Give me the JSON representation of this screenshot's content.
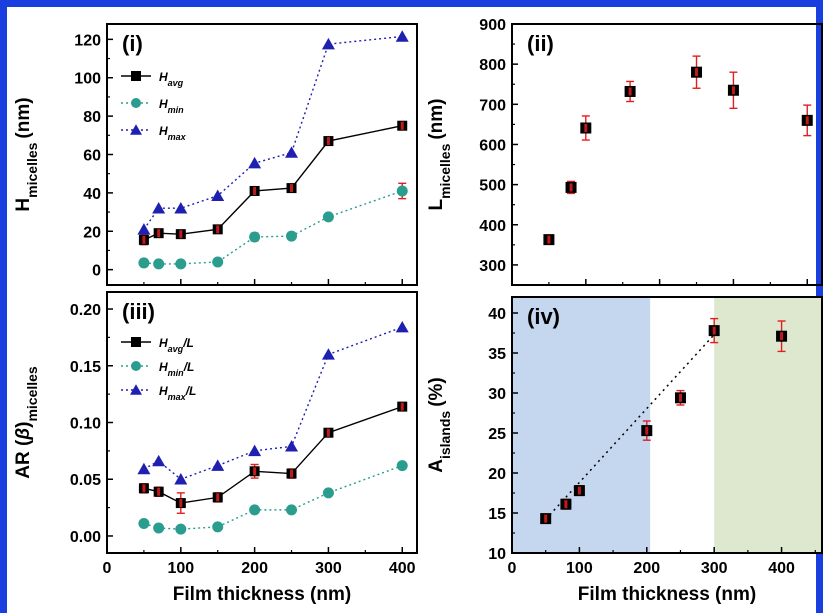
{
  "colors": {
    "frame": "#1a3fe0",
    "avg_marker": "#000000",
    "avg_error": "#e02020",
    "min_marker": "#2a9d8f",
    "max_marker": "#2020b0",
    "region_blue": "#c4d7ee",
    "region_green": "#dde8cf"
  },
  "chart_data": [
    {
      "id": "i",
      "type": "line",
      "panel_label": "(i)",
      "ylabel_main": "H",
      "ylabel_sub": "micelles",
      "ylabel_unit": "(nm)",
      "xlabel": "",
      "xlim": [
        0,
        420
      ],
      "ylim": [
        -8,
        128
      ],
      "yticks": [
        0,
        20,
        40,
        60,
        80,
        100,
        120
      ],
      "xticks": [
        0,
        100,
        200,
        300,
        400
      ],
      "show_xtick_labels": false,
      "legend": "top-left",
      "series": [
        {
          "name": "H",
          "name_sub": "avg",
          "name_suffix": "",
          "marker": "square",
          "line": "solid",
          "x": [
            50,
            70,
            100,
            150,
            200,
            250,
            300,
            400
          ],
          "y": [
            15.5,
            19,
            18.5,
            21,
            41,
            42.5,
            67,
            75
          ],
          "yerr": [
            2.5,
            1.5,
            1.5,
            1.5,
            1.5,
            1.5,
            1.5,
            1.5
          ]
        },
        {
          "name": "H",
          "name_sub": "min",
          "name_suffix": "",
          "marker": "circle",
          "line": "dotted",
          "x": [
            50,
            70,
            100,
            150,
            200,
            250,
            300,
            400
          ],
          "y": [
            3.5,
            3,
            3,
            4,
            17,
            17.5,
            27.5,
            41
          ],
          "yerr": [
            0.5,
            0.5,
            0.5,
            0.5,
            2,
            1,
            1,
            4
          ]
        },
        {
          "name": "H",
          "name_sub": "max",
          "name_suffix": "",
          "marker": "triangle",
          "line": "dotted",
          "x": [
            50,
            70,
            100,
            150,
            200,
            250,
            300,
            400
          ],
          "y": [
            21,
            32,
            32,
            38.5,
            55.5,
            61,
            117.5,
            121.5
          ],
          "yerr": [
            0,
            0,
            0,
            0,
            0,
            0,
            0,
            0
          ]
        }
      ]
    },
    {
      "id": "ii",
      "type": "scatter",
      "panel_label": "(ii)",
      "ylabel_main": "L",
      "ylabel_sub": "micelles",
      "ylabel_unit": "(nm)",
      "xlabel": "",
      "xlim": [
        0,
        420
      ],
      "ylim": [
        250,
        900
      ],
      "yticks": [
        300,
        400,
        500,
        600,
        700,
        800,
        900
      ],
      "xticks": [
        0,
        100,
        200,
        300,
        400
      ],
      "show_xtick_labels": false,
      "legend": "none",
      "series": [
        {
          "name": "",
          "marker": "square",
          "line": "none",
          "x": [
            50,
            80,
            100,
            160,
            250,
            300,
            400
          ],
          "y": [
            363,
            493,
            641,
            732,
            780,
            735,
            660
          ],
          "yerr": [
            10,
            15,
            30,
            25,
            40,
            45,
            38
          ]
        }
      ]
    },
    {
      "id": "iii",
      "type": "line",
      "panel_label": "(iii)",
      "ylabel_main": "AR (",
      "ylabel_beta": "β",
      "ylabel_close": ")",
      "ylabel_sub": "micelles",
      "ylabel_unit": "",
      "xlabel": "Film thickness (nm)",
      "xlim": [
        0,
        420
      ],
      "ylim": [
        -0.015,
        0.215
      ],
      "yticks": [
        0.0,
        0.05,
        0.1,
        0.15,
        0.2
      ],
      "ytick_labels": [
        "0.00",
        "0.05",
        "0.10",
        "0.15",
        "0.20"
      ],
      "xticks": [
        0,
        100,
        200,
        300,
        400
      ],
      "show_xtick_labels": true,
      "legend": "top-left",
      "series": [
        {
          "name": "H",
          "name_sub": "avg",
          "name_suffix": "/L",
          "marker": "square",
          "line": "solid",
          "x": [
            50,
            70,
            100,
            150,
            200,
            250,
            300,
            400
          ],
          "y": [
            0.042,
            0.039,
            0.029,
            0.034,
            0.057,
            0.055,
            0.091,
            0.114
          ],
          "yerr": [
            0.004,
            0.004,
            0.009,
            0.004,
            0.006,
            0.004,
            0.002,
            0.003
          ]
        },
        {
          "name": "H",
          "name_sub": "min",
          "name_suffix": "/L",
          "marker": "circle",
          "line": "dotted",
          "x": [
            50,
            70,
            100,
            150,
            200,
            250,
            300,
            400
          ],
          "y": [
            0.011,
            0.007,
            0.006,
            0.008,
            0.023,
            0.023,
            0.038,
            0.062
          ],
          "yerr": [
            0,
            0,
            0,
            0,
            0,
            0,
            0,
            0
          ]
        },
        {
          "name": "H",
          "name_sub": "max",
          "name_suffix": "/L",
          "marker": "triangle",
          "line": "dotted",
          "x": [
            50,
            70,
            100,
            150,
            200,
            250,
            300,
            400
          ],
          "y": [
            0.059,
            0.066,
            0.05,
            0.062,
            0.075,
            0.079,
            0.16,
            0.184
          ],
          "yerr": [
            0,
            0,
            0,
            0,
            0,
            0,
            0,
            0
          ]
        }
      ]
    },
    {
      "id": "iv",
      "type": "scatter",
      "panel_label": "(iv)",
      "ylabel_main": "A",
      "ylabel_sub": "islands",
      "ylabel_unit": "(%)",
      "xlabel": "Film thickness (nm)",
      "xlim": [
        0,
        460
      ],
      "ylim": [
        10,
        42
      ],
      "yticks": [
        10,
        15,
        20,
        25,
        30,
        35,
        40
      ],
      "xticks": [
        0,
        100,
        200,
        300,
        400
      ],
      "show_xtick_labels": true,
      "legend": "none",
      "regions": [
        {
          "x0": 0,
          "x1": 205,
          "color": "#c4d7ee"
        },
        {
          "x0": 300,
          "x1": 460,
          "color": "#dde8cf"
        }
      ],
      "fit_line": {
        "x": [
          50,
          300
        ],
        "y": [
          14.2,
          37.3
        ]
      },
      "series": [
        {
          "name": "",
          "marker": "square",
          "line": "none",
          "x": [
            50,
            80,
            100,
            200,
            250,
            300,
            400
          ],
          "y": [
            14.3,
            16.1,
            17.8,
            25.3,
            29.4,
            37.8,
            37.1
          ],
          "yerr": [
            0.4,
            0.6,
            0.6,
            1.2,
            0.9,
            1.5,
            1.9
          ]
        }
      ]
    }
  ]
}
